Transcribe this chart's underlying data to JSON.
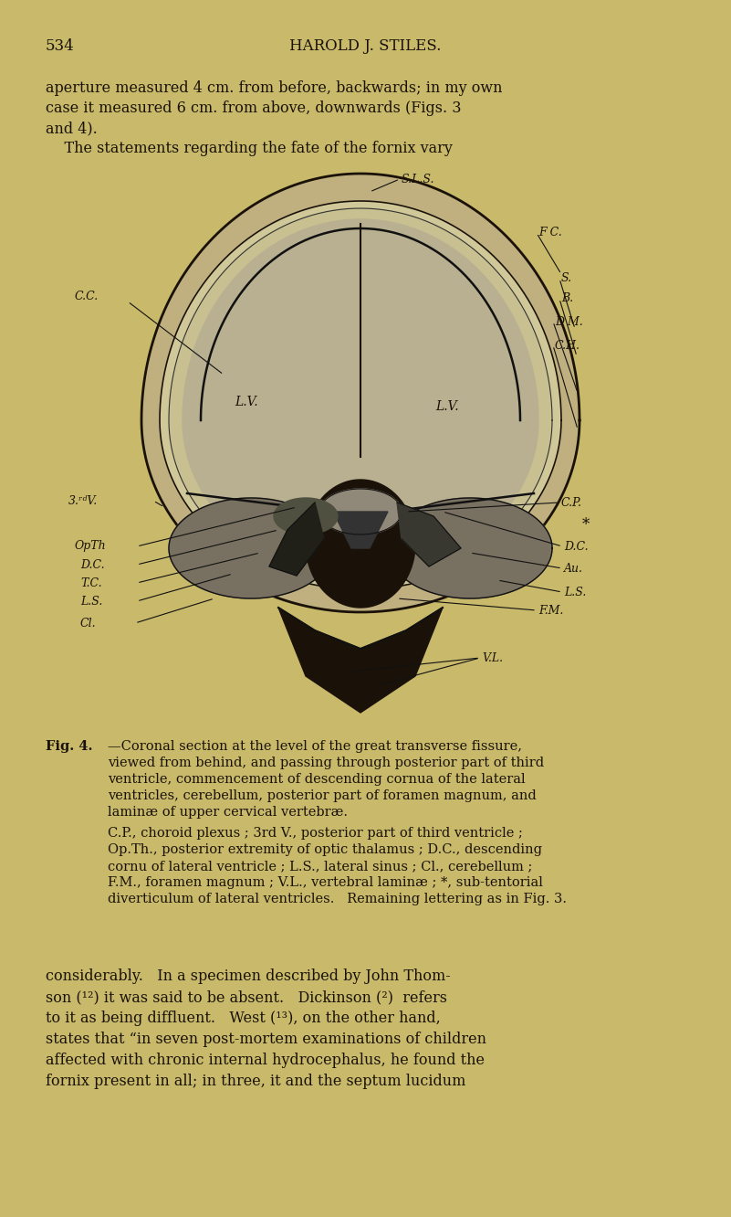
{
  "background_color": "#c9b96b",
  "page_width": 8.01,
  "page_height": 13.32,
  "dpi": 100,
  "header_number": "534",
  "header_title": "HAROLD J. STILES.",
  "top_text_lines": [
    "aperture measured 4 cm. from before, backwards; in my own",
    "case it measured 6 cm. from above, downwards (Figs. 3",
    "and 4).",
    "    The statements regarding the fate of the fornix vary"
  ],
  "fig_caption_title": "Fig. 4.",
  "fig_caption_body": [
    "—Coronal section at the level of the great transverse fissure,",
    "viewed from behind, and passing through posterior part of third",
    "ventricle, commencement of descending cornua of the lateral",
    "ventricles, cerebellum, posterior part of foramen magnum, and",
    "laminæ of upper cervical vertebræ."
  ],
  "fig_caption_abbrev": [
    "C.P., choroid plexus ; 3rd V., posterior part of third ventricle ;",
    "Op.Th., posterior extremity of optic thalamus ; D.C., descending",
    "cornu of lateral ventricle ; L.S., lateral sinus ; Cl., cerebellum ;",
    "F.M., foramen magnum ; V.L., vertebral laminæ ; *, sub-tentorial",
    "diverticulum of lateral ventricles.   Remaining lettering as in Fig. 3."
  ],
  "bottom_text_lines": [
    "considerably.   In a specimen described by John Thom-",
    "son (¹²) it was said to be absent.   Dickinson (²)  refers",
    "to it as being diffluent.   West (¹³), on the other hand,",
    "states that “in seven post-mortem examinations of children",
    "affected with chronic internal hydrocephalus, he found the",
    "fornix present in all; in three, it and the septum lucidum"
  ],
  "text_color": "#1a1208",
  "font_size_header": 12,
  "font_size_body": 11.5,
  "font_size_caption": 10.5
}
